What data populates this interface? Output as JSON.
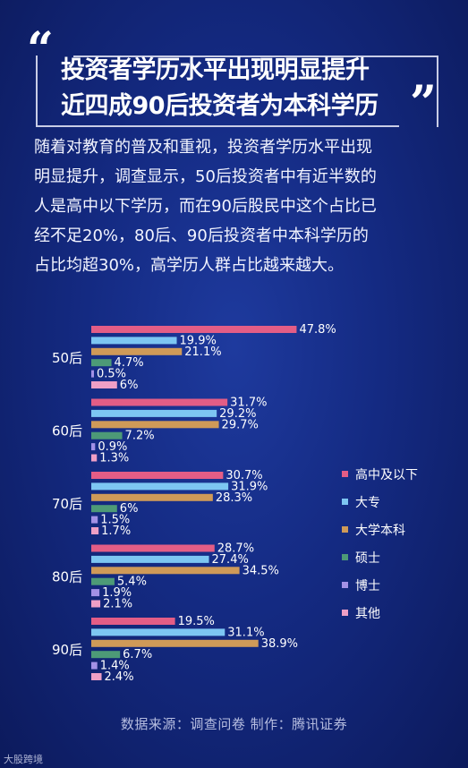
{
  "header": {
    "open_quote": "“",
    "close_quote": "”",
    "title_line1": "投资者学历水平出现明显提升",
    "title_line2": "近四成90后投资者为本科学历"
  },
  "description": {
    "lines": [
      "随着对教育的普及和重视，投资者学历水平出现",
      "明显提升，调查显示，50后投资者中有近半数的",
      "人是高中以下学历，而在90后股民中这个占比已",
      "经不足20%，80后、90后投资者中本科学历的",
      "占比均超30%，高学历人群占比越来越大。"
    ]
  },
  "chart_data": {
    "type": "bar",
    "orientation": "horizontal",
    "categories": [
      "50后",
      "60后",
      "70后",
      "80后",
      "90后"
    ],
    "series": [
      {
        "name": "高中及以下",
        "color": "#e35d86",
        "values": [
          47.8,
          31.7,
          30.7,
          28.7,
          19.5
        ],
        "labels": [
          "47.8%",
          "31.7%",
          "30.7%",
          "28.7%",
          "19.5%"
        ]
      },
      {
        "name": "大专",
        "color": "#7dc6f2",
        "values": [
          19.9,
          29.2,
          31.9,
          27.4,
          31.1
        ],
        "labels": [
          "19.9%",
          "29.2%",
          "31.9%",
          "27.4%",
          "31.1%"
        ]
      },
      {
        "name": "大学本科",
        "color": "#cf9a58",
        "values": [
          21.1,
          29.7,
          28.3,
          34.5,
          38.9
        ],
        "labels": [
          "21.1%",
          "29.7%",
          "28.3%",
          "34.5%",
          "38.9%"
        ]
      },
      {
        "name": "硕士",
        "color": "#4d9a77",
        "values": [
          4.7,
          7.2,
          6,
          5.4,
          6.7
        ],
        "labels": [
          "4.7%",
          "7.2%",
          "6%",
          "5.4%",
          "6.7%"
        ]
      },
      {
        "name": "博士",
        "color": "#a391e6",
        "values": [
          0.5,
          0.9,
          1.5,
          1.9,
          1.4
        ],
        "labels": [
          "0.5%",
          "0.9%",
          "1.5%",
          "1.9%",
          "1.4%"
        ]
      },
      {
        "name": "其他",
        "color": "#ee9fc6",
        "values": [
          6,
          1.3,
          1.7,
          2.1,
          2.4
        ],
        "labels": [
          "6%",
          "1.3%",
          "1.7%",
          "2.1%",
          "2.4%"
        ]
      }
    ],
    "legend_position": "right",
    "grid": false
  },
  "footer": {
    "source": "数据来源：调查问卷  制作：腾讯证券",
    "watermark": "大股跨境"
  }
}
